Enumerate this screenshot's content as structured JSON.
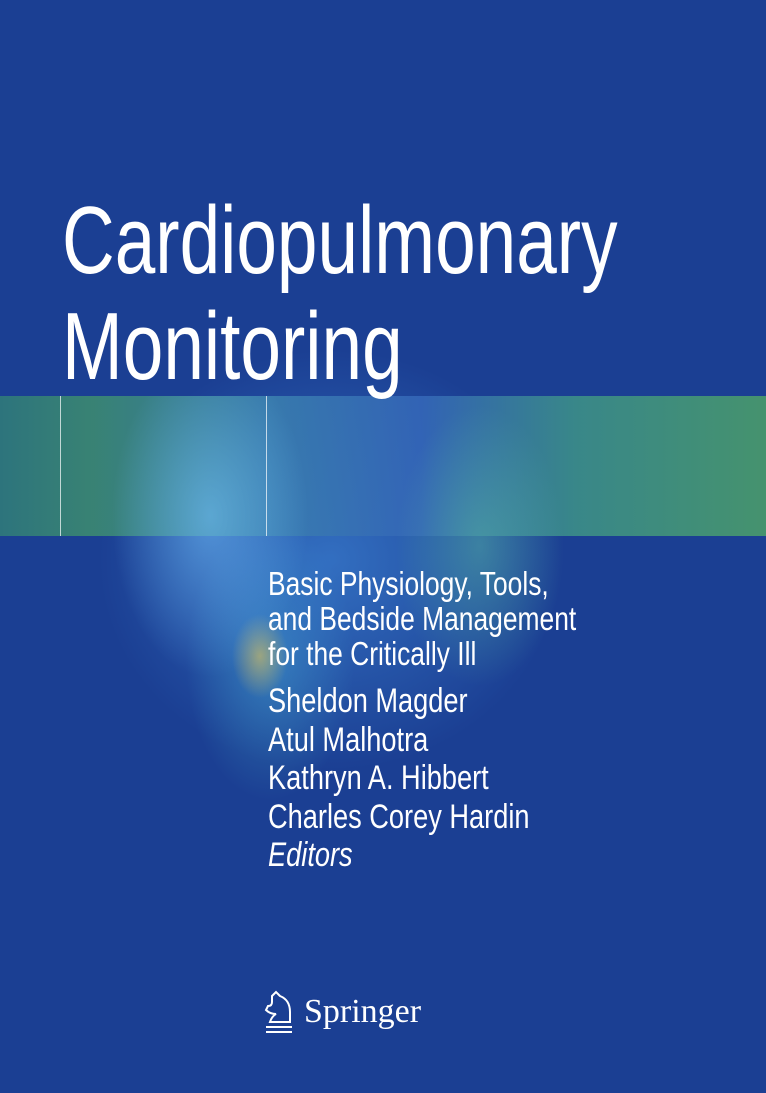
{
  "cover": {
    "title_lines": [
      "Cardiopulmonary",
      "Monitoring"
    ],
    "subtitle_lines": [
      "Basic Physiology, Tools,",
      "and Bedside Management",
      "for the Critically Ill"
    ],
    "editors": [
      "Sheldon Magder",
      "Atul Malhotra",
      "Kathryn A. Hibbert",
      "Charles Corey Hardin"
    ],
    "editors_label": "Editors",
    "publisher": "Springer",
    "publisher_icon": "springer-knight-icon",
    "background_color": "#1b3f93"
  }
}
